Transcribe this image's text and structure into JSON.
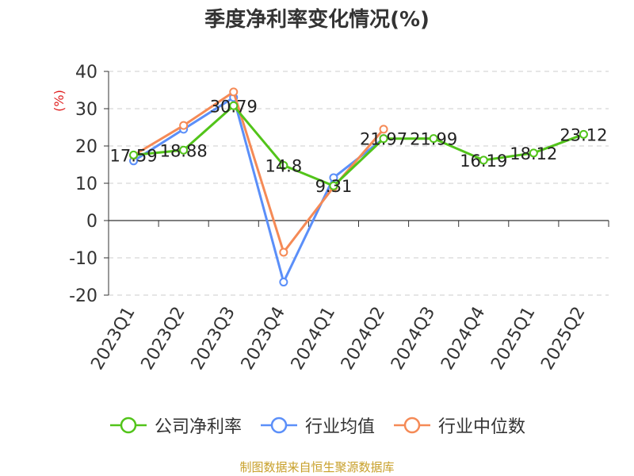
{
  "chart_data": {
    "type": "line",
    "title": "季度净利率变化情况(%)",
    "ylabel": "(%)",
    "xlabel": "",
    "categories": [
      "2023Q1",
      "2023Q2",
      "2023Q3",
      "2023Q4",
      "2024Q1",
      "2024Q2",
      "2024Q3",
      "2024Q4",
      "2025Q1",
      "2025Q2"
    ],
    "ylim": [
      -20,
      40
    ],
    "yticks": [
      "40",
      "30",
      "20",
      "10",
      "0",
      "-10",
      "-20"
    ],
    "grid": true,
    "legend_position": "bottom",
    "series": [
      {
        "name": "公司净利率",
        "color": "#52c41a",
        "values": [
          17.59,
          18.88,
          30.79,
          14.8,
          9.31,
          21.97,
          21.99,
          16.19,
          18.12,
          23.12
        ],
        "labels": [
          "17.59",
          "18.88",
          "30.79",
          "14.8",
          "9.31",
          "21.97",
          "21.99",
          "16.19",
          "18.12",
          "23.12"
        ]
      },
      {
        "name": "行业均值",
        "color": "#5b8ff9",
        "values": [
          16.0,
          24.5,
          33.0,
          -16.5,
          11.5,
          22.0,
          null,
          null,
          null,
          null
        ]
      },
      {
        "name": "行业中位数",
        "color": "#f58a56",
        "values": [
          17.5,
          25.5,
          34.5,
          -8.5,
          9.0,
          24.5,
          null,
          null,
          null,
          null
        ]
      }
    ]
  },
  "source_text": "制图数据来自恒生聚源数据库"
}
